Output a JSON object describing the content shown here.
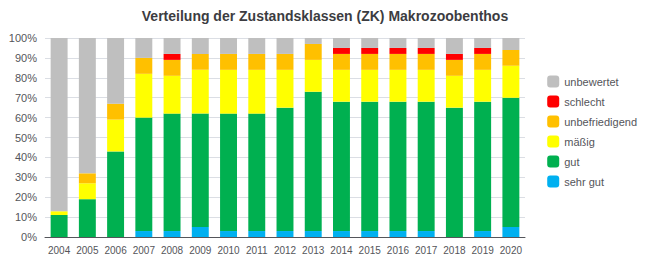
{
  "chart_data": {
    "type": "bar",
    "stacked": true,
    "title": "Verteilung der Zustandsklassen (ZK) Makrozoobenthos",
    "categories": [
      "2004",
      "2005",
      "2006",
      "2007",
      "2008",
      "2009",
      "2010",
      "2011",
      "2012",
      "2013",
      "2014",
      "2015",
      "2016",
      "2017",
      "2018",
      "2019",
      "2020"
    ],
    "series": [
      {
        "name": "sehr gut",
        "color": "#00B0F0",
        "values": [
          0,
          0,
          0,
          3,
          3,
          5,
          3,
          3,
          3,
          3,
          3,
          3,
          3,
          3,
          0,
          3,
          5
        ]
      },
      {
        "name": "gut",
        "color": "#00B050",
        "values": [
          11,
          19,
          43,
          57,
          59,
          57,
          59,
          59,
          62,
          70,
          65,
          65,
          65,
          65,
          65,
          65,
          65
        ]
      },
      {
        "name": "mäßig",
        "color": "#FFFF00",
        "values": [
          2,
          8,
          16,
          22,
          19,
          22,
          22,
          22,
          19,
          16,
          16,
          16,
          16,
          16,
          16,
          16,
          16
        ]
      },
      {
        "name": "unbefriedigend",
        "color": "#FFC000",
        "values": [
          0,
          5,
          8,
          8,
          8,
          8,
          8,
          8,
          8,
          8,
          8,
          8,
          8,
          8,
          8,
          8,
          8
        ]
      },
      {
        "name": "schlecht",
        "color": "#FF0000",
        "values": [
          0,
          0,
          0,
          0,
          3,
          0,
          0,
          0,
          0,
          0,
          3,
          3,
          3,
          3,
          3,
          3,
          0
        ]
      },
      {
        "name": "unbewertet",
        "color": "#BFBFBF",
        "values": [
          87,
          68,
          33,
          10,
          8,
          8,
          8,
          8,
          8,
          3,
          5,
          5,
          5,
          5,
          8,
          5,
          6
        ]
      }
    ],
    "ylim": [
      0,
      100
    ],
    "yticks": [
      {
        "value": 0,
        "label": "0%"
      },
      {
        "value": 10,
        "label": "10%"
      },
      {
        "value": 20,
        "label": "20%"
      },
      {
        "value": 30,
        "label": "30%"
      },
      {
        "value": 40,
        "label": "40%"
      },
      {
        "value": 50,
        "label": "50%"
      },
      {
        "value": 60,
        "label": "60%"
      },
      {
        "value": 70,
        "label": "70%"
      },
      {
        "value": 80,
        "label": "80%"
      },
      {
        "value": 90,
        "label": "90%"
      },
      {
        "value": 100,
        "label": "100%"
      }
    ],
    "grid": true,
    "legend": "right"
  }
}
